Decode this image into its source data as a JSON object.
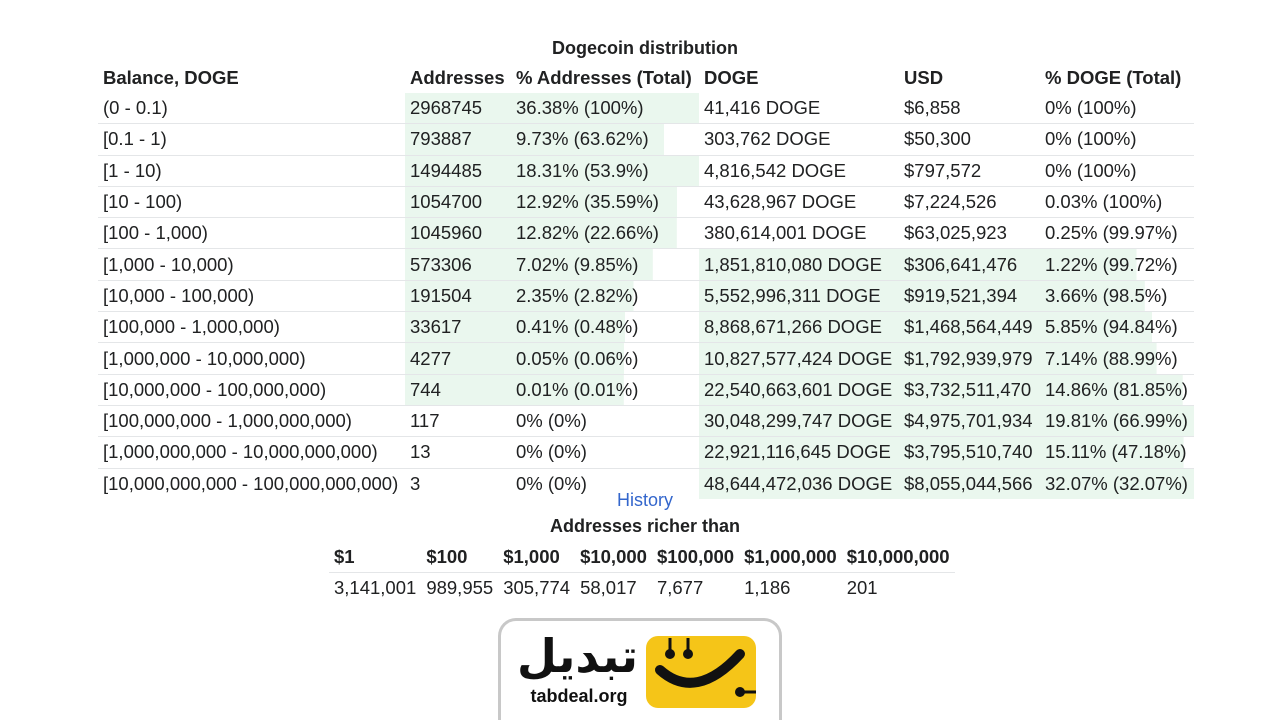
{
  "distribution": {
    "caption": "Dogecoin distribution",
    "headers": [
      "Balance, DOGE",
      "Addresses",
      "% Addresses (Total)",
      "DOGE",
      "USD",
      "% DOGE (Total)"
    ],
    "rows": [
      {
        "balance": "(0 - 0.1)",
        "addresses": "2968745",
        "pct_addresses": "36.38% (100%)",
        "doge": "41,416 DOGE",
        "usd": "$6,858",
        "pct_doge": "0% (100%)",
        "addr_share": 36.38,
        "doge_share": 0
      },
      {
        "balance": "[0.1 - 1)",
        "addresses": "793887",
        "pct_addresses": "9.73% (63.62%)",
        "doge": "303,762 DOGE",
        "usd": "$50,300",
        "pct_doge": "0% (100%)",
        "addr_share": 9.73,
        "doge_share": 0
      },
      {
        "balance": "[1 - 10)",
        "addresses": "1494485",
        "pct_addresses": "18.31% (53.9%)",
        "doge": "4,816,542 DOGE",
        "usd": "$797,572",
        "pct_doge": "0% (100%)",
        "addr_share": 18.31,
        "doge_share": 0
      },
      {
        "balance": "[10 - 100)",
        "addresses": "1054700",
        "pct_addresses": "12.92% (35.59%)",
        "doge": "43,628,967 DOGE",
        "usd": "$7,224,526",
        "pct_doge": "0.03% (100%)",
        "addr_share": 12.92,
        "doge_share": 0.03
      },
      {
        "balance": "[100 - 1,000)",
        "addresses": "1045960",
        "pct_addresses": "12.82% (22.66%)",
        "doge": "380,614,001 DOGE",
        "usd": "$63,025,923",
        "pct_doge": "0.25% (99.97%)",
        "addr_share": 12.82,
        "doge_share": 0.25
      },
      {
        "balance": "[1,000 - 10,000)",
        "addresses": "573306",
        "pct_addresses": "7.02% (9.85%)",
        "doge": "1,851,810,080 DOGE",
        "usd": "$306,641,476",
        "pct_doge": "1.22% (99.72%)",
        "addr_share": 7.02,
        "doge_share": 1.22
      },
      {
        "balance": "[10,000 - 100,000)",
        "addresses": "191504",
        "pct_addresses": "2.35% (2.82%)",
        "doge": "5,552,996,311 DOGE",
        "usd": "$919,521,394",
        "pct_doge": "3.66% (98.5%)",
        "addr_share": 2.35,
        "doge_share": 3.66
      },
      {
        "balance": "[100,000 - 1,000,000)",
        "addresses": "33617",
        "pct_addresses": "0.41% (0.48%)",
        "doge": "8,868,671,266 DOGE",
        "usd": "$1,468,564,449",
        "pct_doge": "5.85% (94.84%)",
        "addr_share": 0.41,
        "doge_share": 5.85
      },
      {
        "balance": "[1,000,000 - 10,000,000)",
        "addresses": "4277",
        "pct_addresses": "0.05% (0.06%)",
        "doge": "10,827,577,424 DOGE",
        "usd": "$1,792,939,979",
        "pct_doge": "7.14% (88.99%)",
        "addr_share": 0.05,
        "doge_share": 7.14
      },
      {
        "balance": "[10,000,000 - 100,000,000)",
        "addresses": "744",
        "pct_addresses": "0.01% (0.01%)",
        "doge": "22,540,663,601 DOGE",
        "usd": "$3,732,511,470",
        "pct_doge": "14.86% (81.85%)",
        "addr_share": 0.01,
        "doge_share": 14.86
      },
      {
        "balance": "[100,000,000 - 1,000,000,000)",
        "addresses": "117",
        "pct_addresses": "0% (0%)",
        "doge": "30,048,299,747 DOGE",
        "usd": "$4,975,701,934",
        "pct_doge": "19.81% (66.99%)",
        "addr_share": 0,
        "doge_share": 19.81
      },
      {
        "balance": "[1,000,000,000 - 10,000,000,000)",
        "addresses": "13",
        "pct_addresses": "0% (0%)",
        "doge": "22,921,116,645 DOGE",
        "usd": "$3,795,510,740",
        "pct_doge": "15.11% (47.18%)",
        "addr_share": 0,
        "doge_share": 15.11
      },
      {
        "balance": "[10,000,000,000 - 100,000,000,000)",
        "addresses": "3",
        "pct_addresses": "0% (0%)",
        "doge": "48,644,472,036 DOGE",
        "usd": "$8,055,044,566",
        "pct_doge": "32.07% (32.07%)",
        "addr_share": 0,
        "doge_share": 32.07
      }
    ]
  },
  "history_link": "History",
  "richer": {
    "caption": "Addresses richer than",
    "headers": [
      "$1",
      "$100",
      "$1,000",
      "$10,000",
      "$100,000",
      "$1,000,000",
      "$10,000,000"
    ],
    "values": [
      "3,141,001",
      "989,955",
      "305,774",
      "58,017",
      "7,677",
      "1,186",
      "201"
    ]
  },
  "logo": {
    "wordmark": "تبدیل",
    "domain": "tabdeal.org"
  },
  "colors": {
    "shade": "#eaf7ee",
    "link": "#3366cc",
    "logo_yellow": "#f5c518"
  }
}
